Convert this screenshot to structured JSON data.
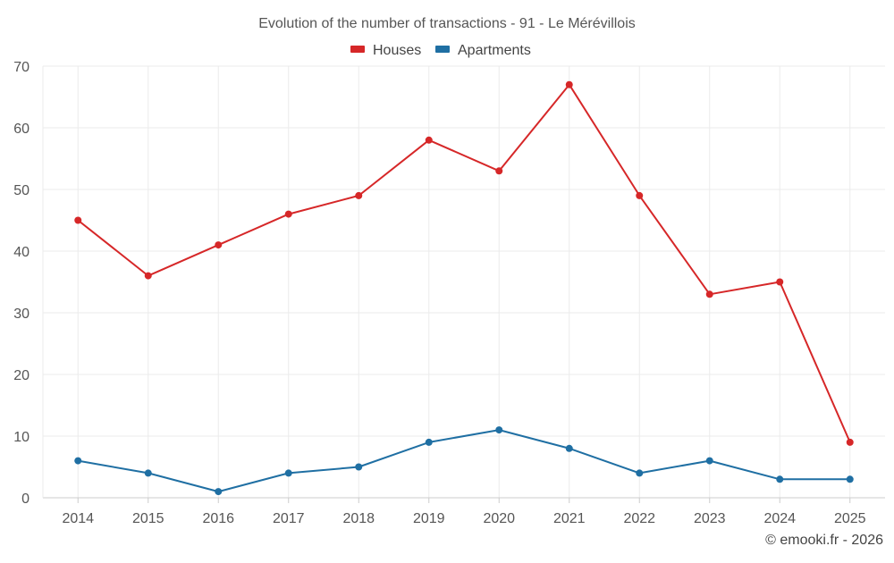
{
  "chart_data": {
    "type": "line",
    "title": "Evolution of the number of transactions - 91 - Le Mérévillois",
    "categories": [
      "2014",
      "2015",
      "2016",
      "2017",
      "2018",
      "2019",
      "2020",
      "2021",
      "2022",
      "2023",
      "2024",
      "2025"
    ],
    "series": [
      {
        "name": "Houses",
        "color": "#d62728",
        "values": [
          45,
          36,
          41,
          46,
          49,
          58,
          53,
          67,
          49,
          33,
          35,
          9
        ]
      },
      {
        "name": "Apartments",
        "color": "#1f6fa3",
        "values": [
          6,
          4,
          1,
          4,
          5,
          9,
          11,
          8,
          4,
          6,
          3,
          3
        ]
      }
    ],
    "ylim": [
      0,
      70
    ],
    "yticks": [
      0,
      10,
      20,
      30,
      40,
      50,
      60,
      70
    ],
    "xlabel": "",
    "ylabel": "",
    "grid": true,
    "legend_position": "top-center"
  },
  "credit": "© emooki.fr - 2026"
}
